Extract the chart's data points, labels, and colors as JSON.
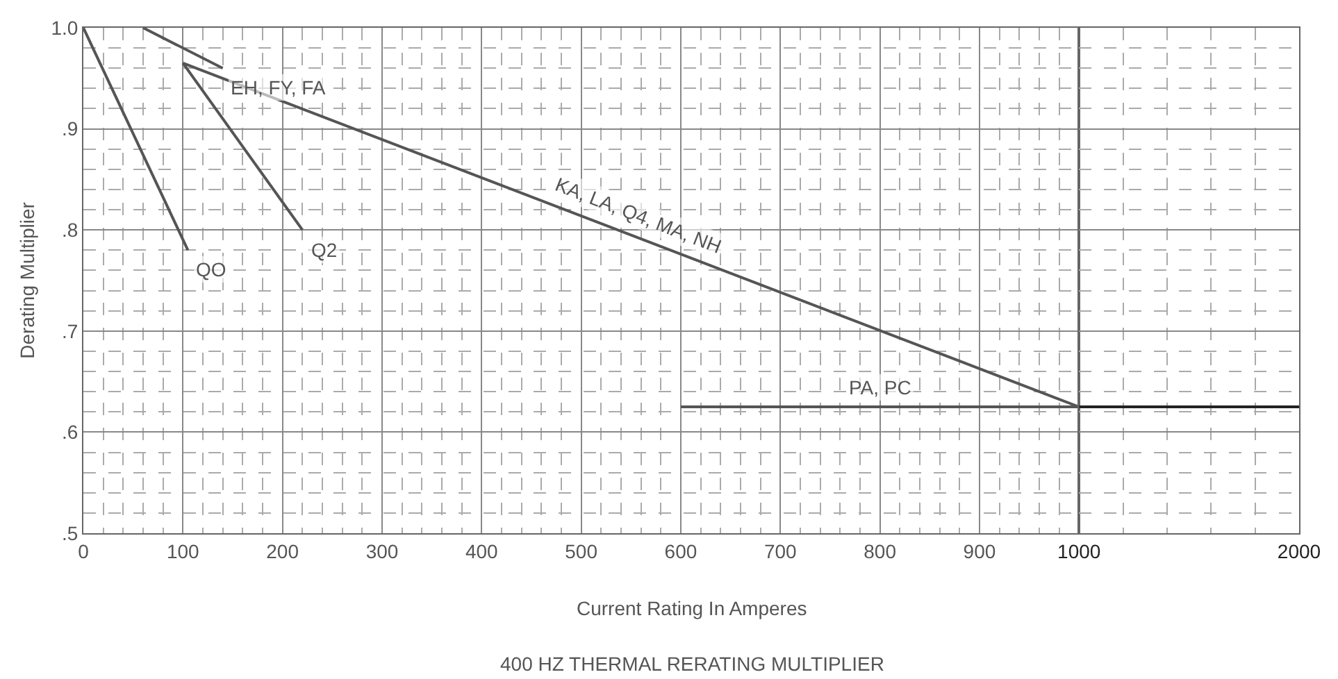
{
  "chart_data": [
    {
      "type": "line",
      "title": "400 HZ THERMAL RERATING MULTIPLIER",
      "xlabel": "Current Rating In Amperes",
      "ylabel": "Derating Multiplier",
      "xlim": [
        0,
        1000
      ],
      "xticks": [
        0,
        100,
        200,
        300,
        400,
        500,
        600,
        700,
        800,
        900
      ],
      "ylim": [
        0.5,
        1.0
      ],
      "yticks": [
        {
          "value": 0.5,
          "label": ".5"
        },
        {
          "value": 0.6,
          "label": ".6"
        },
        {
          "value": 0.7,
          "label": ".7"
        },
        {
          "value": 0.8,
          "label": ".8"
        },
        {
          "value": 0.9,
          "label": ".9"
        },
        {
          "value": 1.0,
          "label": "1.0"
        }
      ],
      "grid": true,
      "legend": false,
      "marker": "none",
      "line_style": "solid",
      "series": [
        {
          "name": "QO",
          "color": "#555555",
          "x": [
            0,
            105
          ],
          "values": [
            1.0,
            0.78
          ]
        },
        {
          "name": "Q2",
          "color": "#555555",
          "x": [
            100,
            220
          ],
          "values": [
            0.965,
            0.8
          ]
        },
        {
          "name": "EH, FY, FA",
          "color": "#555555",
          "x": [
            60,
            140
          ],
          "values": [
            1.0,
            0.96
          ]
        },
        {
          "name": "KA, LA, Q4, MA, NH",
          "color": "#555555",
          "x": [
            100,
            1000
          ],
          "values": [
            0.965,
            0.625
          ]
        },
        {
          "name": "PA, PC",
          "color": "#555555",
          "x": [
            600,
            1000
          ],
          "values": [
            0.625,
            0.625
          ]
        }
      ]
    },
    {
      "type": "line",
      "xlim": [
        1000,
        2000
      ],
      "xticks": [
        1000,
        2000
      ],
      "ylim": [
        0.5,
        1.0
      ],
      "tick_labels": "x",
      "grid": true,
      "legend": false,
      "marker": "none",
      "line_style": "solid",
      "series": [
        {
          "color": "#222222",
          "x": [
            1000,
            2000
          ],
          "values": [
            0.625,
            0.625
          ]
        }
      ]
    }
  ]
}
